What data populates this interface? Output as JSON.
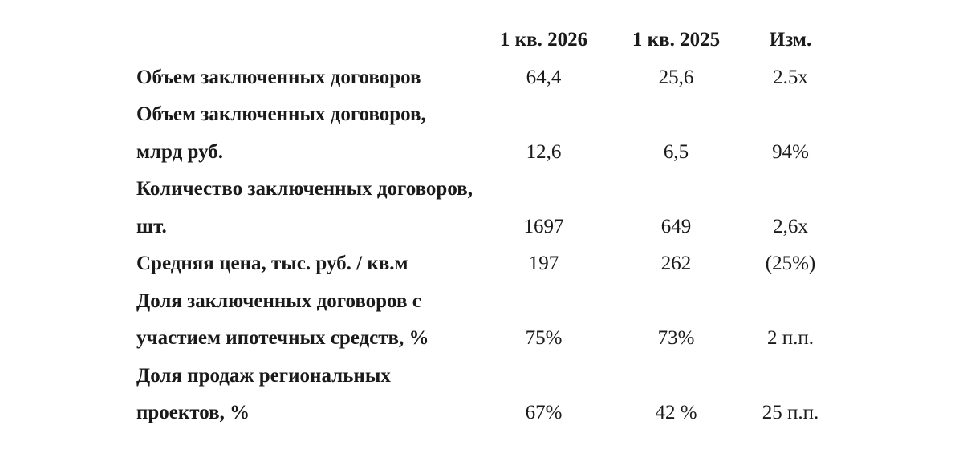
{
  "colors": {
    "background": "#ffffff",
    "text": "#1a1a1a"
  },
  "chart_data": {
    "type": "table",
    "title": "",
    "columns": {
      "metric": "",
      "q1_2026": "1 кв. 2026",
      "q1_2025": "1 кв. 2025",
      "change": "Изм."
    },
    "rows": [
      {
        "label": "Объем заключенных договоров",
        "q1_2026": "64,4",
        "q1_2025": "25,6",
        "change": "2.5x"
      },
      {
        "label": "Объем заключенных договоров,\nмлрд руб.",
        "q1_2026": "12,6",
        "q1_2025": "6,5",
        "change": "94%"
      },
      {
        "label": "Количество заключенных договоров,\nшт.",
        "q1_2026": "1697",
        "q1_2025": "649",
        "change": "2,6x"
      },
      {
        "label": "Средняя цена, тыс. руб. / кв.м",
        "q1_2026": "197",
        "q1_2025": "262",
        "change": "(25%)"
      },
      {
        "label": "Доля заключенных договоров с\nучастием ипотечных средств, %",
        "q1_2026": "75%",
        "q1_2025": "73%",
        "change": "2 п.п."
      },
      {
        "label": "Доля продаж региональных\nпроектов, %",
        "q1_2026": "67%",
        "q1_2025": "42 %",
        "change": "25 п.п."
      }
    ]
  }
}
